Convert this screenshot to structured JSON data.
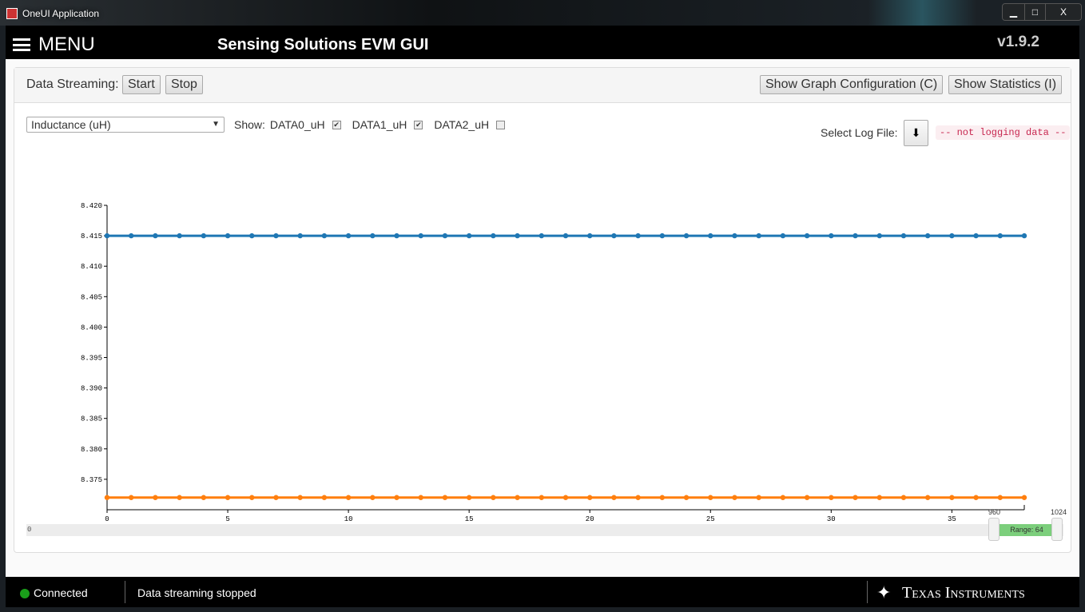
{
  "window": {
    "title": "OneUI Application",
    "minimize": "▁",
    "maximize": "□",
    "close": "X"
  },
  "header": {
    "menu_label": "MENU",
    "title": "Sensing Solutions EVM GUI",
    "version": "v1.9.2"
  },
  "toolbar": {
    "streaming_label": "Data Streaming:",
    "start": "Start",
    "stop": "Stop",
    "graph_config": "Show Graph Configuration (C)",
    "statistics": "Show Statistics (I)"
  },
  "controls": {
    "measure_select": "Inductance (uH)",
    "show_label": "Show:",
    "channels": [
      {
        "label": "DATA0_uH",
        "checked": true
      },
      {
        "label": "DATA1_uH",
        "checked": true
      },
      {
        "label": "DATA2_uH",
        "checked": false
      }
    ],
    "log_label": "Select Log File:",
    "log_status": "-- not logging data --"
  },
  "chart_data": {
    "type": "line",
    "xlim": [
      0,
      38
    ],
    "ylim": [
      8.37,
      8.42
    ],
    "xticks": [
      "0",
      "5",
      "10",
      "15",
      "20",
      "25",
      "30",
      "35"
    ],
    "yticks": [
      "8.420",
      "8.415",
      "8.410",
      "8.405",
      "8.400",
      "8.395",
      "8.390",
      "8.385",
      "8.380",
      "8.375"
    ],
    "series": [
      {
        "name": "DATA0_uH",
        "color": "#1f77b4",
        "constant": 8.415,
        "visible": true
      },
      {
        "name": "DATA1_uH",
        "color": "#ff7f0e",
        "constant": 8.372,
        "visible": true
      },
      {
        "name": "DATA2_uH",
        "color": "#c8e6c9",
        "visible": false
      }
    ],
    "legend": "bottom-left"
  },
  "range_slider": {
    "min_label": "0",
    "low": "960",
    "high": "1024",
    "range_label": "Range: 64"
  },
  "footer": {
    "status": "Connected",
    "status_color": "#1a9e1a",
    "message": "Data streaming stopped",
    "brand": "Texas Instruments"
  }
}
